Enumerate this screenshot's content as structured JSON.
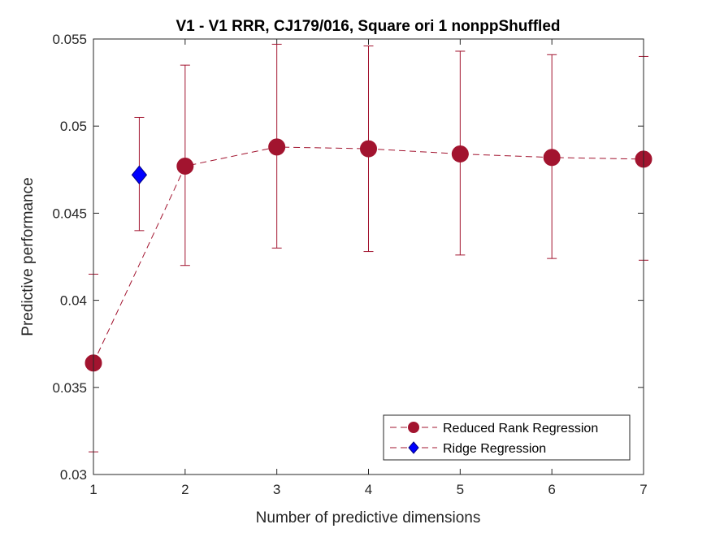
{
  "chart_data": {
    "type": "scatter",
    "title": "V1 - V1 RRR, CJ179/016, Square ori 1 nonppShuffled",
    "xlabel": "Number of predictive dimensions",
    "ylabel": "Predictive performance",
    "xlim": [
      1,
      7
    ],
    "ylim": [
      0.03,
      0.055
    ],
    "xticks": [
      1,
      2,
      3,
      4,
      5,
      6,
      7
    ],
    "yticks": [
      0.03,
      0.035,
      0.04,
      0.045,
      0.05,
      0.055
    ],
    "ytick_labels": [
      "0.03",
      "0.035",
      "0.04",
      "0.045",
      "0.05",
      "0.055"
    ],
    "grid": false,
    "legend_position": "bottom-right",
    "series": [
      {
        "name": "Reduced Rank Regression",
        "marker": "circle",
        "line": "dashed",
        "color": "#A2142F",
        "x": [
          1,
          2,
          3,
          4,
          5,
          6,
          7
        ],
        "y": [
          0.0364,
          0.0477,
          0.0488,
          0.0487,
          0.0484,
          0.0482,
          0.0481
        ],
        "err_low": [
          0.0313,
          0.042,
          0.043,
          0.0428,
          0.0426,
          0.0424,
          0.0423
        ],
        "err_high": [
          0.0415,
          0.0535,
          0.0547,
          0.0546,
          0.0543,
          0.0541,
          0.054
        ]
      },
      {
        "name": "Ridge Regression",
        "marker": "diamond",
        "line": "none",
        "color": "#0000FF",
        "errcolor": "#A2142F",
        "x": [
          1.5
        ],
        "y": [
          0.0472
        ],
        "err_low": [
          0.044
        ],
        "err_high": [
          0.0505
        ]
      }
    ]
  }
}
